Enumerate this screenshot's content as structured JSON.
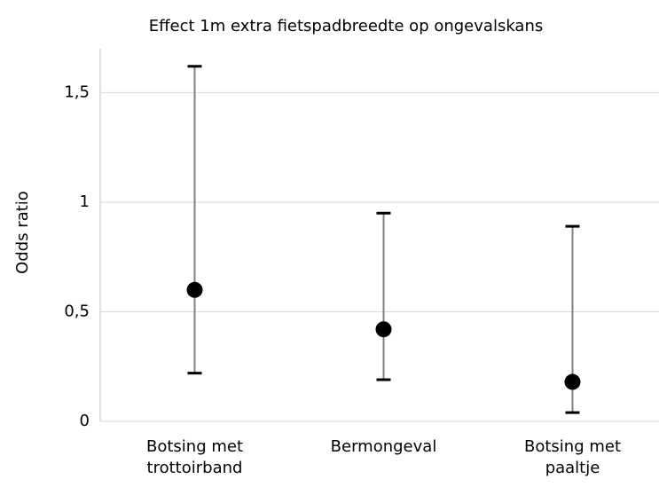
{
  "chart_data": {
    "type": "errorbar",
    "title": "Effect 1m extra fietspadbreedte op ongevalskans",
    "y_label": "Odds ratio",
    "categories": [
      "Botsing met trottoirband",
      "Bermongeval",
      "Botsing met paaltje"
    ],
    "values": [
      0.6,
      0.42,
      0.18
    ],
    "lower": [
      0.22,
      0.19,
      0.04
    ],
    "upper": [
      1.62,
      0.95,
      0.89
    ],
    "color": "#000000",
    "errorbar_color": "#808080",
    "ylim": [
      0,
      1.7
    ],
    "yticks": [
      0,
      {
        "value": 0.5,
        "label": "0,5"
      },
      1,
      {
        "value": 1.5,
        "label": "1,5"
      }
    ],
    "grid": true
  }
}
